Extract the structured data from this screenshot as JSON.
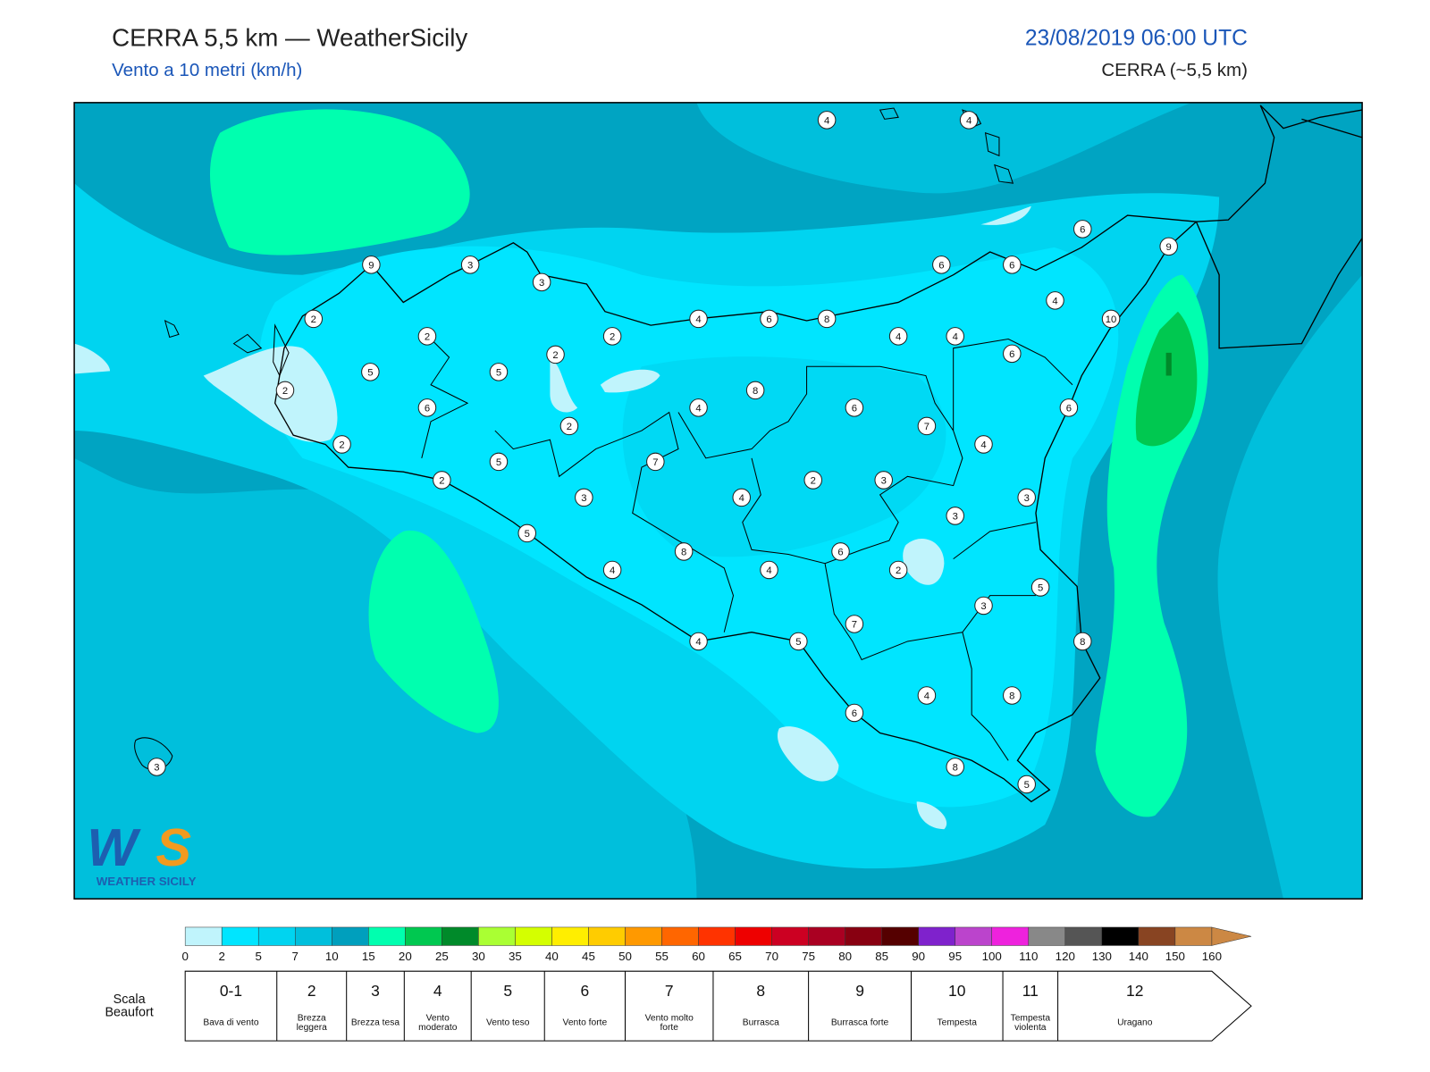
{
  "header": {
    "title": "CERRA 5,5 km — WeatherSicily",
    "subtitle": "Vento a 10 metri (km/h)",
    "date": "23/08/2019 06:00 UTC",
    "model": "CERRA (~5,5 km)"
  },
  "stations": [
    4,
    4,
    9,
    3,
    3,
    2,
    2,
    2,
    2,
    4,
    6,
    8,
    4,
    4,
    6,
    6,
    6,
    9,
    4,
    10,
    6,
    5,
    5,
    2,
    6,
    4,
    8,
    6,
    6,
    2,
    7,
    4,
    2,
    5,
    7,
    2,
    2,
    3,
    3,
    4,
    3,
    3,
    5,
    8,
    6,
    4,
    4,
    2,
    5,
    3,
    7,
    4,
    5,
    8,
    4,
    8,
    6,
    3,
    8,
    5
  ],
  "legend": {
    "labels": [
      0,
      2,
      5,
      7,
      10,
      15,
      20,
      25,
      30,
      35,
      40,
      45,
      50,
      55,
      60,
      65,
      70,
      75,
      80,
      85,
      90,
      95,
      100,
      110,
      120,
      130,
      140,
      150,
      160
    ],
    "colors": [
      "#c0f4fc",
      "#00e5ff",
      "#00d4f0",
      "#00bfdc",
      "#009fbd",
      "#00ffaf",
      "#00c850",
      "#008a2a",
      "#aaff33",
      "#d4ff00",
      "#ffee00",
      "#ffcc00",
      "#ff9900",
      "#ff6600",
      "#ff3300",
      "#ee0000",
      "#cc0022",
      "#aa0022",
      "#880011",
      "#550000",
      "#7f22cc",
      "#bb44cc",
      "#ee22dd",
      "#888888",
      "#555555",
      "#000000",
      "#884422",
      "#cc8844"
    ]
  },
  "beaufort": {
    "title": "Scala Beaufort",
    "levels": [
      {
        "force": "0-1",
        "name": "Bava di vento"
      },
      {
        "force": "2",
        "name": "Brezza leggera"
      },
      {
        "force": "3",
        "name": "Brezza tesa"
      },
      {
        "force": "4",
        "name": "Vento moderato"
      },
      {
        "force": "5",
        "name": "Vento teso"
      },
      {
        "force": "6",
        "name": "Vento forte"
      },
      {
        "force": "7",
        "name": "Vento molto forte"
      },
      {
        "force": "8",
        "name": "Burrasca"
      },
      {
        "force": "9",
        "name": "Burrasca forte"
      },
      {
        "force": "10",
        "name": "Tempesta"
      },
      {
        "force": "11",
        "name": "Tempesta violenta"
      },
      {
        "force": "12",
        "name": "Uragano"
      }
    ]
  }
}
